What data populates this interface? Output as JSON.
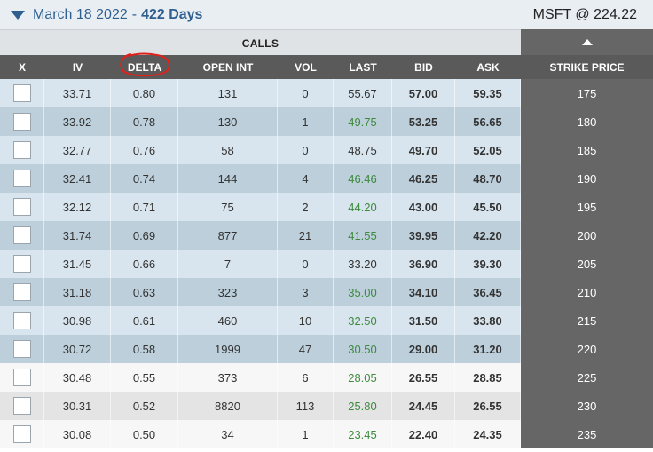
{
  "expiry": {
    "date": "March 18 2022",
    "separator": "-",
    "days": "422 Days"
  },
  "quote": {
    "text": "MSFT @ 224.22"
  },
  "section": {
    "calls_label": "CALLS"
  },
  "columns": {
    "x": "X",
    "iv": "IV",
    "delta": "DELTA",
    "open_int": "OPEN INT",
    "vol": "VOL",
    "last": "LAST",
    "bid": "BID",
    "ask": "ASK",
    "strike": "STRIKE PRICE"
  },
  "rows": [
    {
      "iv": "33.71",
      "delta": "0.80",
      "open_int": "131",
      "vol": "0",
      "last": "55.67",
      "bid": "57.00",
      "ask": "59.35",
      "strike": "175"
    },
    {
      "iv": "33.92",
      "delta": "0.78",
      "open_int": "130",
      "vol": "1",
      "last": "49.75",
      "bid": "53.25",
      "ask": "56.65",
      "strike": "180"
    },
    {
      "iv": "32.77",
      "delta": "0.76",
      "open_int": "58",
      "vol": "0",
      "last": "48.75",
      "bid": "49.70",
      "ask": "52.05",
      "strike": "185"
    },
    {
      "iv": "32.41",
      "delta": "0.74",
      "open_int": "144",
      "vol": "4",
      "last": "46.46",
      "bid": "46.25",
      "ask": "48.70",
      "strike": "190"
    },
    {
      "iv": "32.12",
      "delta": "0.71",
      "open_int": "75",
      "vol": "2",
      "last": "44.20",
      "bid": "43.00",
      "ask": "45.50",
      "strike": "195"
    },
    {
      "iv": "31.74",
      "delta": "0.69",
      "open_int": "877",
      "vol": "21",
      "last": "41.55",
      "bid": "39.95",
      "ask": "42.20",
      "strike": "200"
    },
    {
      "iv": "31.45",
      "delta": "0.66",
      "open_int": "7",
      "vol": "0",
      "last": "33.20",
      "bid": "36.90",
      "ask": "39.30",
      "strike": "205"
    },
    {
      "iv": "31.18",
      "delta": "0.63",
      "open_int": "323",
      "vol": "3",
      "last": "35.00",
      "bid": "34.10",
      "ask": "36.45",
      "strike": "210"
    },
    {
      "iv": "30.98",
      "delta": "0.61",
      "open_int": "460",
      "vol": "10",
      "last": "32.50",
      "bid": "31.50",
      "ask": "33.80",
      "strike": "215"
    },
    {
      "iv": "30.72",
      "delta": "0.58",
      "open_int": "1999",
      "vol": "47",
      "last": "30.50",
      "bid": "29.00",
      "ask": "31.20",
      "strike": "220"
    },
    {
      "iv": "30.48",
      "delta": "0.55",
      "open_int": "373",
      "vol": "6",
      "last": "28.05",
      "bid": "26.55",
      "ask": "28.85",
      "strike": "225"
    },
    {
      "iv": "30.31",
      "delta": "0.52",
      "open_int": "8820",
      "vol": "113",
      "last": "25.80",
      "bid": "24.45",
      "ask": "26.55",
      "strike": "230"
    },
    {
      "iv": "30.08",
      "delta": "0.50",
      "open_int": "34",
      "vol": "1",
      "last": "23.45",
      "bid": "22.40",
      "ask": "24.35",
      "strike": "235"
    }
  ],
  "colors": {
    "accent_blue": "#2f5f8f",
    "last_green": "#3d8a3d",
    "header_gray": "#5a5a5a",
    "strike_gray": "#666666",
    "annotation_red": "#e0201b"
  },
  "icons": {
    "expiry_toggle": "triangle-down-icon",
    "strike_sort": "triangle-up-icon"
  }
}
